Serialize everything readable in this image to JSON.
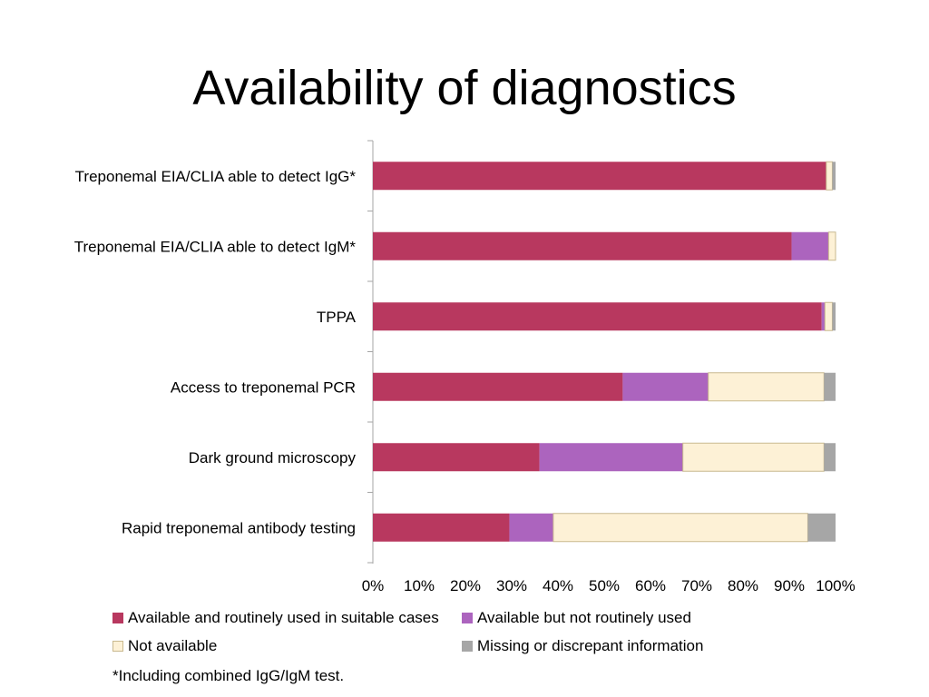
{
  "slide": {
    "title": "Availability of diagnostics",
    "footnote": "*Including combined IgG/IgM test."
  },
  "chart_data": {
    "type": "bar",
    "orientation": "horizontal",
    "stacked": "percent",
    "categories": [
      "Treponemal EIA/CLIA able to detect IgG*",
      "Treponemal EIA/CLIA able to detect IgM*",
      "TPPA",
      "Access to treponemal PCR",
      "Dark ground microscopy",
      "Rapid treponemal antibody testing"
    ],
    "series": [
      {
        "name": "Available and routinely used in suitable cases",
        "color": "#b8385f",
        "values": [
          98,
          90.5,
          97,
          54,
          36,
          29.5
        ]
      },
      {
        "name": "Available but not routinely used",
        "color": "#ac64be",
        "values": [
          0,
          8,
          0.7,
          18.5,
          31,
          9.5
        ]
      },
      {
        "name": "Not available",
        "color": "#fdf1d6",
        "values": [
          1.3,
          1.5,
          1.6,
          25,
          30.5,
          55
        ]
      },
      {
        "name": "Missing or discrepant information",
        "color": "#a6a6a6",
        "values": [
          0.7,
          0,
          0.7,
          2.5,
          2.5,
          6
        ]
      }
    ],
    "xlim": [
      0,
      100
    ],
    "xticks": [
      "0%",
      "10%",
      "20%",
      "30%",
      "40%",
      "50%",
      "60%",
      "70%",
      "80%",
      "90%",
      "100%"
    ],
    "xlabel": "",
    "ylabel": "",
    "grid": false,
    "legend_position": "bottom"
  }
}
